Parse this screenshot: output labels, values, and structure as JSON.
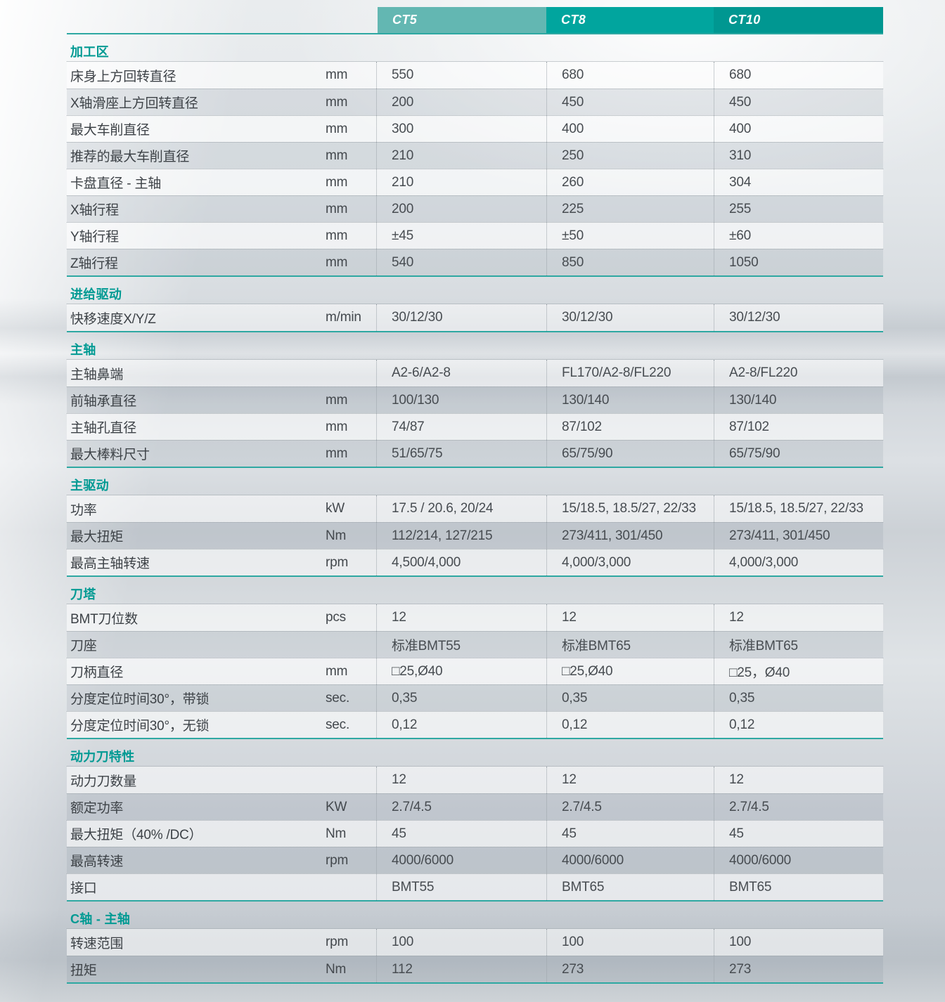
{
  "columns": [
    "CT5",
    "CT8",
    "CT10"
  ],
  "header_colors": [
    "#63b7b2",
    "#01a59e",
    "#009791"
  ],
  "accent_color": "#2ea8a2",
  "section_title_color": "#019a93",
  "sections": [
    {
      "title": "加工区",
      "rows": [
        {
          "label": "床身上方回转直径",
          "unit": "mm",
          "values": [
            "550",
            "680",
            "680"
          ]
        },
        {
          "label": "X轴滑座上方回转直径",
          "unit": "mm",
          "values": [
            "200",
            "450",
            "450"
          ]
        },
        {
          "label": "最大车削直径",
          "unit": "mm",
          "values": [
            "300",
            "400",
            "400"
          ]
        },
        {
          "label": "推荐的最大车削直径",
          "unit": "mm",
          "values": [
            "210",
            "250",
            "310"
          ]
        },
        {
          "label": "卡盘直径 - 主轴",
          "unit": "mm",
          "values": [
            "210",
            "260",
            "304"
          ]
        },
        {
          "label": "X轴行程",
          "unit": "mm",
          "values": [
            "200",
            "225",
            "255"
          ]
        },
        {
          "label": "Y轴行程",
          "unit": "mm",
          "values": [
            "±45",
            "±50",
            "±60"
          ]
        },
        {
          "label": "Z轴行程",
          "unit": "mm",
          "values": [
            "540",
            "850",
            "1050"
          ]
        }
      ]
    },
    {
      "title": "进给驱动",
      "rows": [
        {
          "label": "快移速度X/Y/Z",
          "unit": "m/min",
          "values": [
            "30/12/30",
            "30/12/30",
            "30/12/30"
          ]
        }
      ]
    },
    {
      "title": "主轴",
      "rows": [
        {
          "label": "主轴鼻端",
          "unit": "",
          "values": [
            "A2-6/A2-8",
            "FL170/A2-8/FL220",
            "A2-8/FL220"
          ]
        },
        {
          "label": "前轴承直径",
          "unit": "mm",
          "values": [
            "100/130",
            "130/140",
            "130/140"
          ]
        },
        {
          "label": "主轴孔直径",
          "unit": "mm",
          "values": [
            "74/87",
            "87/102",
            "87/102"
          ]
        },
        {
          "label": "最大棒料尺寸",
          "unit": "mm",
          "values": [
            "51/65/75",
            "65/75/90",
            "65/75/90"
          ]
        }
      ]
    },
    {
      "title": "主驱动",
      "rows": [
        {
          "label": "功率",
          "unit": "kW",
          "values": [
            "17.5 / 20.6, 20/24",
            "15/18.5, 18.5/27, 22/33",
            "15/18.5, 18.5/27, 22/33"
          ]
        },
        {
          "label": "最大扭矩",
          "unit": "Nm",
          "values": [
            "112/214, 127/215",
            "273/411, 301/450",
            "273/411, 301/450"
          ]
        },
        {
          "label": "最高主轴转速",
          "unit": "rpm",
          "values": [
            "4,500/4,000",
            "4,000/3,000",
            "4,000/3,000"
          ]
        }
      ]
    },
    {
      "title": "刀塔",
      "rows": [
        {
          "label": "BMT刀位数",
          "unit": "pcs",
          "values": [
            "12",
            "12",
            "12"
          ]
        },
        {
          "label": "刀座",
          "unit": "",
          "values": [
            "标准BMT55",
            "标准BMT65",
            "标准BMT65"
          ]
        },
        {
          "label": "刀柄直径",
          "unit": "mm",
          "values": [
            "□25,Ø40",
            "□25,Ø40",
            "□25，Ø40"
          ]
        },
        {
          "label": "分度定位时间30°，带锁",
          "unit": "sec.",
          "values": [
            "0,35",
            "0,35",
            "0,35"
          ]
        },
        {
          "label": "分度定位时间30°，无锁",
          "unit": "sec.",
          "values": [
            "0,12",
            "0,12",
            "0,12"
          ]
        }
      ]
    },
    {
      "title": "动力刀特性",
      "rows": [
        {
          "label": "动力刀数量",
          "unit": "",
          "values": [
            "12",
            "12",
            "12"
          ]
        },
        {
          "label": "额定功率",
          "unit": "KW",
          "values": [
            "2.7/4.5",
            "2.7/4.5",
            "2.7/4.5"
          ]
        },
        {
          "label": "最大扭矩（40% /DC）",
          "unit": "Nm",
          "values": [
            "45",
            "45",
            "45"
          ]
        },
        {
          "label": "最高转速",
          "unit": "rpm",
          "values": [
            "4000/6000",
            "4000/6000",
            "4000/6000"
          ]
        },
        {
          "label": "接口",
          "unit": "",
          "values": [
            "BMT55",
            "BMT65",
            "BMT65"
          ]
        }
      ]
    },
    {
      "title": "C轴 - 主轴",
      "rows": [
        {
          "label": "转速范围",
          "unit": "rpm",
          "values": [
            "100",
            "100",
            "100"
          ]
        },
        {
          "label": "扭矩",
          "unit": "Nm",
          "values": [
            "112",
            "273",
            "273"
          ]
        }
      ]
    }
  ]
}
